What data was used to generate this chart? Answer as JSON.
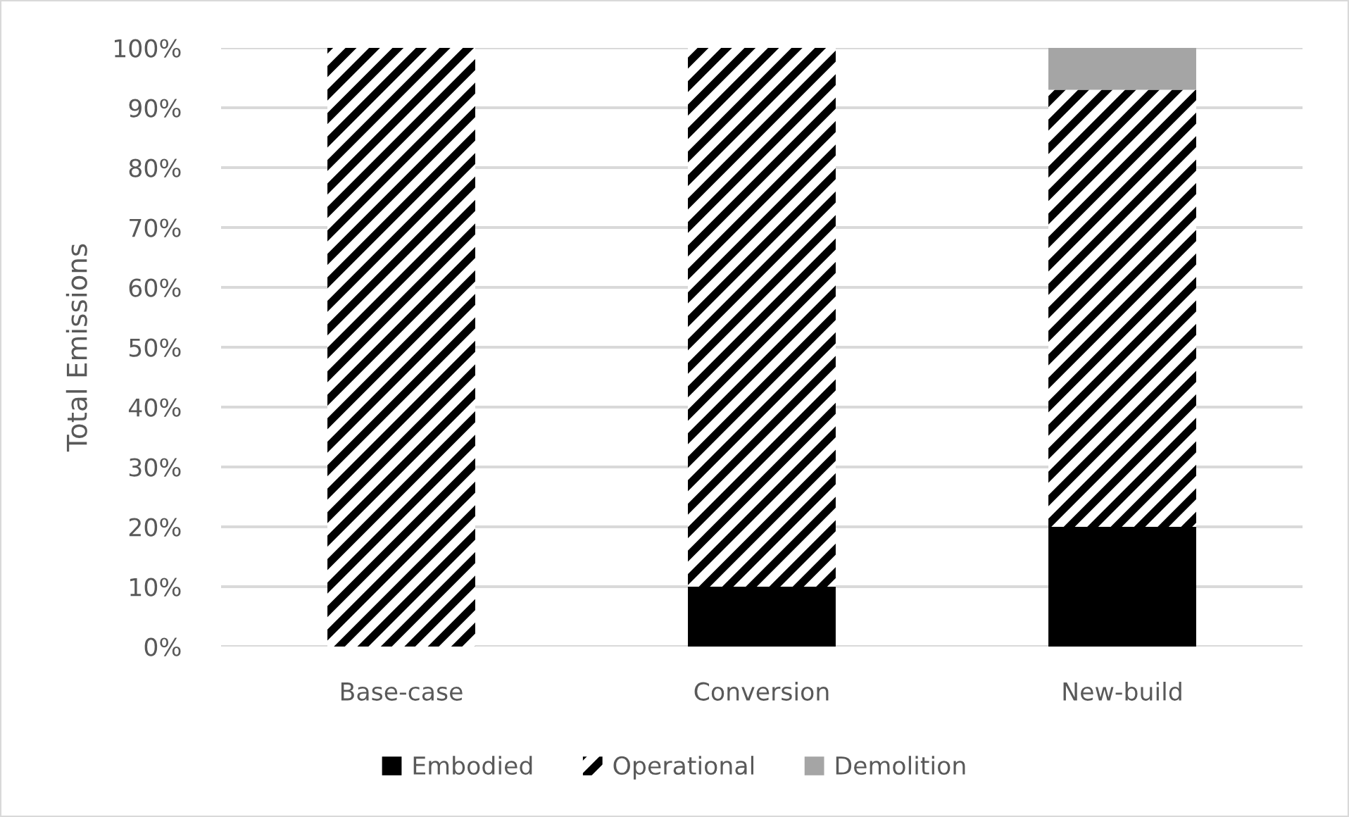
{
  "chart_data": {
    "type": "bar",
    "stacked": true,
    "ylabel": "Total Emissions",
    "categories": [
      "Base-case",
      "Conversion",
      "New-build"
    ],
    "series": [
      {
        "name": "Embodied",
        "color": "#000000",
        "values": [
          0,
          10,
          20
        ]
      },
      {
        "name": "Operational",
        "color": "#000000",
        "values": [
          100,
          90,
          73
        ]
      },
      {
        "name": "Demolition",
        "color": "#a5a5a5",
        "values": [
          0,
          0,
          7
        ]
      }
    ],
    "ylim": [
      0,
      100
    ],
    "yticks": [
      {
        "value": 0,
        "label": "0%"
      },
      {
        "value": 10,
        "label": "10%"
      },
      {
        "value": 20,
        "label": "20%"
      },
      {
        "value": 30,
        "label": "30%"
      },
      {
        "value": 40,
        "label": "40%"
      },
      {
        "value": 50,
        "label": "50%"
      },
      {
        "value": 60,
        "label": "60%"
      },
      {
        "value": 70,
        "label": "70%"
      },
      {
        "value": 80,
        "label": "80%"
      },
      {
        "value": 90,
        "label": "90%"
      },
      {
        "value": 100,
        "label": "100%"
      }
    ],
    "grid": "y",
    "legend": "bottom"
  }
}
